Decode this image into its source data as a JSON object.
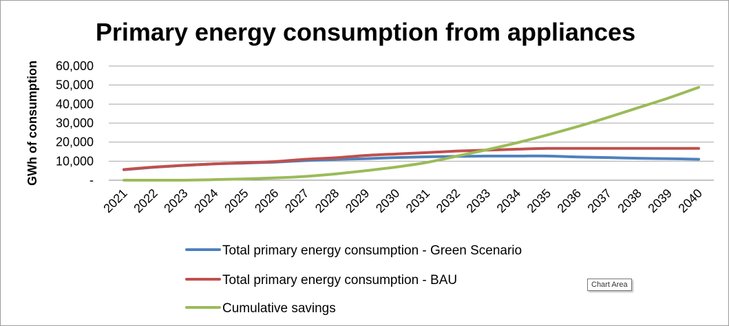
{
  "chart_data": {
    "type": "line",
    "title": "Primary energy consumption from appliances",
    "xlabel": "",
    "ylabel": "GWh of consumption",
    "categories": [
      "2021",
      "2022",
      "2023",
      "2024",
      "2025",
      "2026",
      "2027",
      "2028",
      "2029",
      "2030",
      "2031",
      "2032",
      "2033",
      "2034",
      "2035",
      "2036",
      "2037",
      "2038",
      "2039",
      "2040"
    ],
    "ylim": [
      0,
      60000
    ],
    "yticks": [
      0,
      10000,
      20000,
      30000,
      40000,
      50000,
      60000
    ],
    "ytick_labels": [
      "-",
      "10,000",
      "20,000",
      "30,000",
      "40,000",
      "50,000",
      "60,000"
    ],
    "grid": true,
    "legend_position": "bottom",
    "series": [
      {
        "name": "Total primary energy consumption - Green Scenario",
        "color": "#4f81bd",
        "values": [
          5500,
          6800,
          7800,
          8600,
          9000,
          9500,
          10300,
          10900,
          11300,
          11900,
          12300,
          12500,
          12700,
          12700,
          12700,
          12200,
          11900,
          11500,
          11300,
          11000
        ]
      },
      {
        "name": "Total primary energy consumption - BAU",
        "color": "#c0504d",
        "values": [
          5600,
          6900,
          7800,
          8600,
          9200,
          9800,
          11000,
          11800,
          13000,
          13800,
          14500,
          15300,
          15800,
          16300,
          16700,
          16700,
          16700,
          16700,
          16700,
          16700
        ]
      },
      {
        "name": "Cumulative savings",
        "color": "#9bbb59",
        "values": [
          0,
          0,
          0,
          300,
          700,
          1200,
          2000,
          3300,
          5000,
          6900,
          9300,
          12600,
          16000,
          19700,
          23800,
          28200,
          33000,
          38100,
          43200,
          48800
        ]
      }
    ]
  },
  "tooltip": {
    "label": "Chart Area"
  }
}
